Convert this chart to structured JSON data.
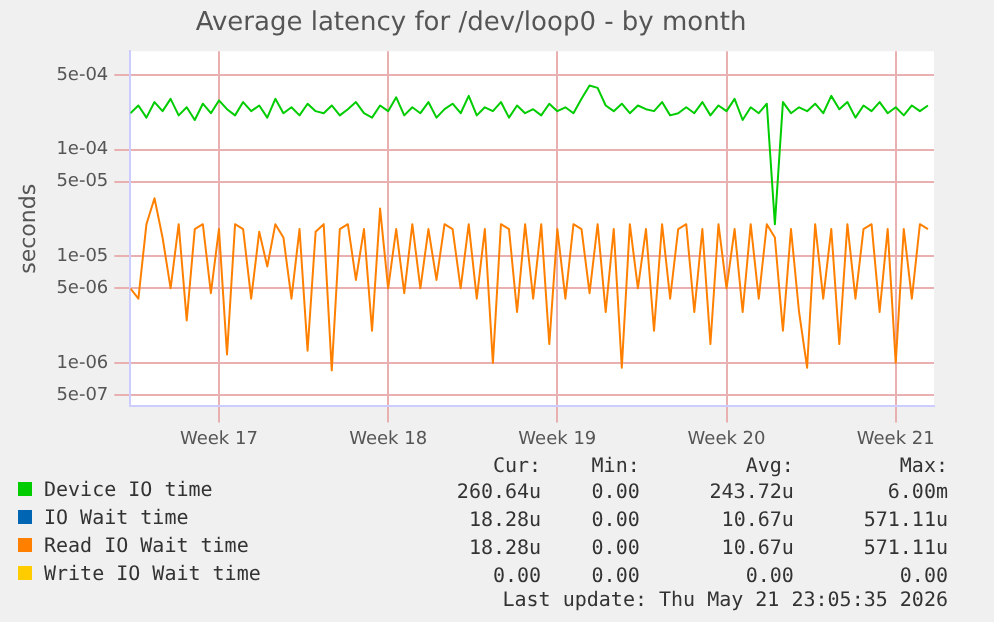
{
  "chart_data": {
    "type": "line",
    "title": "Average latency for /dev/loop0 - by month",
    "ylabel": "seconds",
    "log": "y",
    "grid": true,
    "legend": "bottom",
    "marker": "none",
    "line_style": "solid",
    "x": [
      "2026-04-18T17:00",
      "2026-04-19T01:00",
      "2026-04-19T09:00",
      "2026-04-19T17:00",
      "2026-04-20T01:00",
      "2026-04-20T09:00",
      "2026-04-20T17:00",
      "2026-04-21T01:00",
      "2026-04-21T09:00",
      "2026-04-21T17:00",
      "2026-04-22T01:00",
      "2026-04-22T09:00",
      "2026-04-22T17:00",
      "2026-04-23T01:00",
      "2026-04-23T09:00",
      "2026-04-23T17:00",
      "2026-04-24T01:00",
      "2026-04-24T09:00",
      "2026-04-24T17:00",
      "2026-04-25T01:00",
      "2026-04-25T09:00",
      "2026-04-25T17:00",
      "2026-04-26T01:00",
      "2026-04-26T09:00",
      "2026-04-26T17:00",
      "2026-04-27T01:00",
      "2026-04-27T09:00",
      "2026-04-27T17:00",
      "2026-04-28T01:00",
      "2026-04-28T09:00",
      "2026-04-28T17:00",
      "2026-04-29T01:00",
      "2026-04-29T09:00",
      "2026-04-29T17:00",
      "2026-04-30T01:00",
      "2026-04-30T09:00",
      "2026-04-30T17:00",
      "2026-05-01T01:00",
      "2026-05-01T09:00",
      "2026-05-01T17:00",
      "2026-05-02T01:00",
      "2026-05-02T09:00",
      "2026-05-02T17:00",
      "2026-05-03T01:00",
      "2026-05-03T09:00",
      "2026-05-03T17:00",
      "2026-05-04T01:00",
      "2026-05-04T09:00",
      "2026-05-04T17:00",
      "2026-05-05T01:00",
      "2026-05-05T09:00",
      "2026-05-05T17:00",
      "2026-05-06T01:00",
      "2026-05-06T09:00",
      "2026-05-06T17:00",
      "2026-05-07T01:00",
      "2026-05-07T09:00",
      "2026-05-07T17:00",
      "2026-05-08T01:00",
      "2026-05-08T09:00",
      "2026-05-08T17:00",
      "2026-05-09T01:00",
      "2026-05-09T09:00",
      "2026-05-09T17:00",
      "2026-05-10T01:00",
      "2026-05-10T09:00",
      "2026-05-10T17:00",
      "2026-05-11T01:00",
      "2026-05-11T09:00",
      "2026-05-11T17:00",
      "2026-05-12T01:00",
      "2026-05-12T09:00",
      "2026-05-12T17:00",
      "2026-05-13T01:00",
      "2026-05-13T09:00",
      "2026-05-13T17:00",
      "2026-05-14T01:00",
      "2026-05-14T09:00",
      "2026-05-14T17:00",
      "2026-05-15T01:00",
      "2026-05-15T09:00",
      "2026-05-15T17:00",
      "2026-05-16T01:00",
      "2026-05-16T09:00",
      "2026-05-16T17:00",
      "2026-05-17T01:00",
      "2026-05-17T09:00",
      "2026-05-17T17:00",
      "2026-05-18T01:00",
      "2026-05-18T09:00",
      "2026-05-18T17:00",
      "2026-05-19T01:00",
      "2026-05-19T09:00",
      "2026-05-19T17:00",
      "2026-05-20T01:00",
      "2026-05-20T09:00",
      "2026-05-20T17:00",
      "2026-05-21T01:00",
      "2026-05-21T09:00",
      "2026-05-21T17:00"
    ],
    "xlim": [
      "2026-04-18T17:00",
      "2026-05-21T23:00"
    ],
    "xticks": [
      {
        "value": "2026-04-22T09:00",
        "label": "Week 17"
      },
      {
        "value": "2026-04-29T09:00",
        "label": "Week 18"
      },
      {
        "value": "2026-05-06T09:00",
        "label": "Week 19"
      },
      {
        "value": "2026-05-13T09:00",
        "label": "Week 20"
      },
      {
        "value": "2026-05-20T09:00",
        "label": "Week 21"
      }
    ],
    "ylim": [
      3.9e-07,
      0.00084
    ],
    "yticks": [
      {
        "value": 5e-07,
        "label": "5e-07"
      },
      {
        "value": 1e-06,
        "label": "1e-06"
      },
      {
        "value": 5e-06,
        "label": "5e-06"
      },
      {
        "value": 1e-05,
        "label": "1e-05"
      },
      {
        "value": 5e-05,
        "label": "5e-05"
      },
      {
        "value": 0.0001,
        "label": "1e-04"
      },
      {
        "value": 0.0005,
        "label": "5e-04"
      }
    ],
    "series": [
      {
        "name": "Device IO time",
        "color": "#00cc00",
        "values": [
          0.00022,
          0.00026,
          0.0002,
          0.00028,
          0.00023,
          0.0003,
          0.00021,
          0.00025,
          0.00019,
          0.00027,
          0.00022,
          0.00029,
          0.00024,
          0.00021,
          0.00028,
          0.00023,
          0.00026,
          0.0002,
          0.0003,
          0.00022,
          0.00025,
          0.00021,
          0.00027,
          0.00023,
          0.00022,
          0.00026,
          0.00021,
          0.00024,
          0.00028,
          0.00022,
          0.0002,
          0.00026,
          0.00023,
          0.00031,
          0.00021,
          0.00025,
          0.00022,
          0.00028,
          0.0002,
          0.00024,
          0.00027,
          0.00022,
          0.00032,
          0.00021,
          0.00025,
          0.00023,
          0.00028,
          0.0002,
          0.00026,
          0.00022,
          0.00024,
          0.00021,
          0.00027,
          0.00023,
          0.00025,
          0.00022,
          0.0003,
          0.0004,
          0.00038,
          0.00026,
          0.00023,
          0.00027,
          0.00022,
          0.00026,
          0.00024,
          0.00023,
          0.00028,
          0.00021,
          0.00022,
          0.00025,
          0.00022,
          0.00028,
          0.00021,
          0.00026,
          0.00023,
          0.0003,
          0.00019,
          0.00025,
          0.00022,
          0.00027,
          2e-05,
          0.00028,
          0.00022,
          0.00025,
          0.00023,
          0.00027,
          0.00022,
          0.00032,
          0.00024,
          0.00028,
          0.0002,
          0.00026,
          0.00023,
          0.00028,
          0.00022,
          0.00025,
          0.00021,
          0.00026,
          0.00023,
          0.00026
        ]
      },
      {
        "name": "IO Wait time",
        "color": "#0066b3",
        "values": [
          null,
          null,
          null,
          null,
          null,
          null,
          null,
          null,
          null,
          null,
          null,
          null,
          null,
          null,
          null,
          null,
          null,
          null,
          null,
          null,
          null,
          null,
          null,
          null,
          null,
          null,
          null,
          null,
          null,
          null,
          null,
          null,
          null,
          null,
          null,
          null,
          null,
          null,
          null,
          null,
          null,
          null,
          null,
          null,
          null,
          null,
          null,
          null,
          null,
          null,
          null,
          null,
          null,
          null,
          null,
          null,
          null,
          null,
          null,
          null,
          null,
          null,
          null,
          null,
          null,
          null,
          null,
          null,
          null,
          null,
          null,
          null,
          null,
          null,
          null,
          null,
          null,
          null,
          null,
          null,
          null,
          null,
          null,
          null,
          null,
          null,
          null,
          null,
          null,
          null,
          null,
          null,
          null,
          null,
          null,
          null,
          null,
          null,
          null,
          null
        ]
      },
      {
        "name": "Read IO Wait time",
        "color": "#ff8000",
        "values": [
          5e-06,
          4e-06,
          2e-05,
          3.5e-05,
          1.5e-05,
          5e-06,
          2e-05,
          2.5e-06,
          1.8e-05,
          2e-05,
          4.5e-06,
          1.8e-05,
          1.2e-06,
          2e-05,
          1.8e-05,
          4e-06,
          1.7e-05,
          8e-06,
          2e-05,
          1.5e-05,
          4e-06,
          1.8e-05,
          1.3e-06,
          1.7e-05,
          2e-05,
          8.5e-07,
          1.8e-05,
          2e-05,
          6e-06,
          1.8e-05,
          2e-06,
          2.8e-05,
          5e-06,
          1.8e-05,
          4.5e-06,
          2e-05,
          5e-06,
          1.8e-05,
          6e-06,
          2e-05,
          1.8e-05,
          5e-06,
          2e-05,
          4e-06,
          1.8e-05,
          1e-06,
          2e-05,
          1.8e-05,
          3e-06,
          2e-05,
          4e-06,
          2e-05,
          1.5e-06,
          1.8e-05,
          4e-06,
          2e-05,
          1.8e-05,
          4.5e-06,
          2e-05,
          3e-06,
          1.8e-05,
          9e-07,
          2e-05,
          5e-06,
          1.8e-05,
          2e-06,
          2e-05,
          4e-06,
          1.8e-05,
          2e-05,
          3e-06,
          1.8e-05,
          1.5e-06,
          2e-05,
          5e-06,
          1.8e-05,
          3e-06,
          2e-05,
          4e-06,
          2e-05,
          1.5e-05,
          2e-06,
          1.8e-05,
          3e-06,
          9e-07,
          2e-05,
          4e-06,
          1.8e-05,
          1.5e-06,
          2e-05,
          4e-06,
          1.8e-05,
          2e-05,
          3e-06,
          1.8e-05,
          1e-06,
          1.8e-05,
          4e-06,
          2e-05,
          1.8e-05
        ]
      },
      {
        "name": "Write IO Wait time",
        "color": "#ffcc00",
        "values": [
          null,
          null,
          null,
          null,
          null,
          null,
          null,
          null,
          null,
          null,
          null,
          null,
          null,
          null,
          null,
          null,
          null,
          null,
          null,
          null,
          null,
          null,
          null,
          null,
          null,
          null,
          null,
          null,
          null,
          null,
          null,
          null,
          null,
          null,
          null,
          null,
          null,
          null,
          null,
          null,
          null,
          null,
          null,
          null,
          null,
          null,
          null,
          null,
          null,
          null,
          null,
          null,
          null,
          null,
          null,
          null,
          null,
          null,
          null,
          null,
          null,
          null,
          null,
          null,
          null,
          null,
          null,
          null,
          null,
          null,
          null,
          null,
          null,
          null,
          null,
          null,
          null,
          null,
          null,
          null,
          null,
          null,
          null,
          null,
          null,
          null,
          null,
          null,
          null,
          null,
          null,
          null,
          null,
          null,
          null,
          null,
          null,
          null,
          null,
          null
        ]
      }
    ],
    "annotations": [
      "Cur:",
      "Min:",
      "Avg:",
      "Max:",
      "260.64u",
      "0.00",
      "243.72u",
      "6.00m",
      "18.28u",
      "0.00",
      "10.67u",
      "571.11u",
      "18.28u",
      "0.00",
      "10.67u",
      "571.11u",
      "0.00",
      "0.00",
      "0.00",
      "0.00",
      "Last update: Thu May 21 23:05:35 2026"
    ]
  }
}
